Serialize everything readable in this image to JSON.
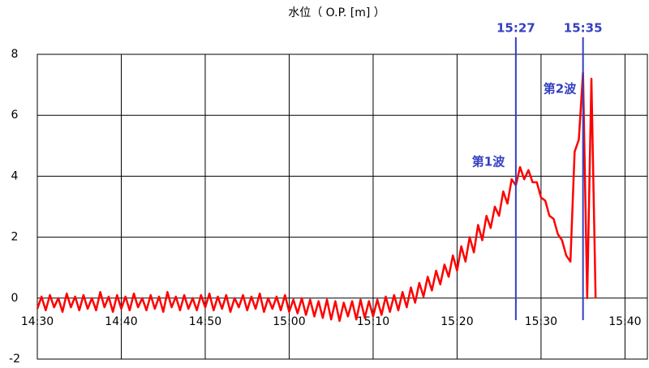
{
  "chart_data": {
    "type": "line",
    "title": "水位（ O.P. [m] ）",
    "color": "#ff0000",
    "xlim": [
      "14:30:00",
      "15:42:40"
    ],
    "xticks": [
      "14:30",
      "14:40",
      "14:50",
      "15:00",
      "15:10",
      "15:20",
      "15:30",
      "15:40"
    ],
    "ylim": [
      -2,
      8
    ],
    "yticks": [
      -2,
      0,
      2,
      4,
      6,
      8
    ],
    "grid": true,
    "vlines": [
      {
        "x": "15:27",
        "label": "15:27"
      },
      {
        "x": "15:35",
        "label": "15:35"
      }
    ],
    "wave_labels": [
      "第1波",
      "第2波"
    ],
    "x": [
      "14:30:00",
      "14:30:30",
      "14:31:00",
      "14:31:30",
      "14:32:00",
      "14:32:30",
      "14:33:00",
      "14:33:30",
      "14:34:00",
      "14:34:30",
      "14:35:00",
      "14:35:30",
      "14:36:00",
      "14:36:30",
      "14:37:00",
      "14:37:30",
      "14:38:00",
      "14:38:30",
      "14:39:00",
      "14:39:30",
      "14:40:00",
      "14:40:30",
      "14:41:00",
      "14:41:30",
      "14:42:00",
      "14:42:30",
      "14:43:00",
      "14:43:30",
      "14:44:00",
      "14:44:30",
      "14:45:00",
      "14:45:30",
      "14:46:00",
      "14:46:30",
      "14:47:00",
      "14:47:30",
      "14:48:00",
      "14:48:30",
      "14:49:00",
      "14:49:30",
      "14:50:00",
      "14:50:30",
      "14:51:00",
      "14:51:30",
      "14:52:00",
      "14:52:30",
      "14:53:00",
      "14:53:30",
      "14:54:00",
      "14:54:30",
      "14:55:00",
      "14:55:30",
      "14:56:00",
      "14:56:30",
      "14:57:00",
      "14:57:30",
      "14:58:00",
      "14:58:30",
      "14:59:00",
      "14:59:30",
      "15:00:00",
      "15:00:30",
      "15:01:00",
      "15:01:30",
      "15:02:00",
      "15:02:30",
      "15:03:00",
      "15:03:30",
      "15:04:00",
      "15:04:30",
      "15:05:00",
      "15:05:30",
      "15:06:00",
      "15:06:30",
      "15:07:00",
      "15:07:30",
      "15:08:00",
      "15:08:30",
      "15:09:00",
      "15:09:30",
      "15:10:00",
      "15:10:30",
      "15:11:00",
      "15:11:30",
      "15:12:00",
      "15:12:30",
      "15:13:00",
      "15:13:30",
      "15:14:00",
      "15:14:30",
      "15:15:00",
      "15:15:30",
      "15:16:00",
      "15:16:30",
      "15:17:00",
      "15:17:30",
      "15:18:00",
      "15:18:30",
      "15:19:00",
      "15:19:30",
      "15:20:00",
      "15:20:30",
      "15:21:00",
      "15:21:30",
      "15:22:00",
      "15:22:30",
      "15:23:00",
      "15:23:30",
      "15:24:00",
      "15:24:30",
      "15:25:00",
      "15:25:30",
      "15:26:00",
      "15:26:30",
      "15:27:00",
      "15:27:30",
      "15:28:00",
      "15:28:30",
      "15:29:00",
      "15:29:30",
      "15:30:00",
      "15:30:30",
      "15:31:00",
      "15:31:30",
      "15:32:00",
      "15:32:30",
      "15:33:00",
      "15:33:30",
      "15:34:00",
      "15:34:30",
      "15:35:00",
      "15:35:30",
      "15:36:00",
      "15:36:30"
    ],
    "values": [
      -0.35,
      0.05,
      -0.4,
      0.1,
      -0.3,
      0.0,
      -0.45,
      0.15,
      -0.3,
      0.05,
      -0.4,
      0.1,
      -0.35,
      0.0,
      -0.4,
      0.2,
      -0.3,
      0.05,
      -0.45,
      0.1,
      -0.35,
      0.05,
      -0.4,
      0.15,
      -0.3,
      0.0,
      -0.4,
      0.1,
      -0.35,
      0.05,
      -0.45,
      0.2,
      -0.3,
      0.05,
      -0.4,
      0.1,
      -0.35,
      0.0,
      -0.4,
      0.1,
      -0.3,
      0.15,
      -0.4,
      0.05,
      -0.35,
      0.1,
      -0.45,
      0.0,
      -0.3,
      0.1,
      -0.4,
      0.05,
      -0.35,
      0.15,
      -0.45,
      0.0,
      -0.35,
      0.05,
      -0.4,
      0.1,
      -0.45,
      -0.05,
      -0.5,
      0.0,
      -0.55,
      -0.05,
      -0.6,
      -0.1,
      -0.65,
      -0.05,
      -0.7,
      -0.1,
      -0.75,
      -0.15,
      -0.6,
      -0.1,
      -0.7,
      -0.05,
      -0.65,
      -0.1,
      -0.6,
      -0.05,
      -0.55,
      0.05,
      -0.45,
      0.1,
      -0.4,
      0.2,
      -0.3,
      0.35,
      -0.15,
      0.5,
      0.05,
      0.7,
      0.25,
      0.9,
      0.45,
      1.1,
      0.7,
      1.4,
      0.9,
      1.7,
      1.2,
      2.0,
      1.5,
      2.4,
      1.9,
      2.7,
      2.3,
      3.0,
      2.7,
      3.5,
      3.1,
      3.9,
      3.7,
      4.3,
      3.9,
      4.2,
      3.8,
      3.8,
      3.3,
      3.2,
      2.7,
      2.6,
      2.1,
      1.9,
      1.4,
      1.2,
      4.8,
      5.2,
      7.4,
      0.0,
      7.2,
      0.0
    ]
  }
}
